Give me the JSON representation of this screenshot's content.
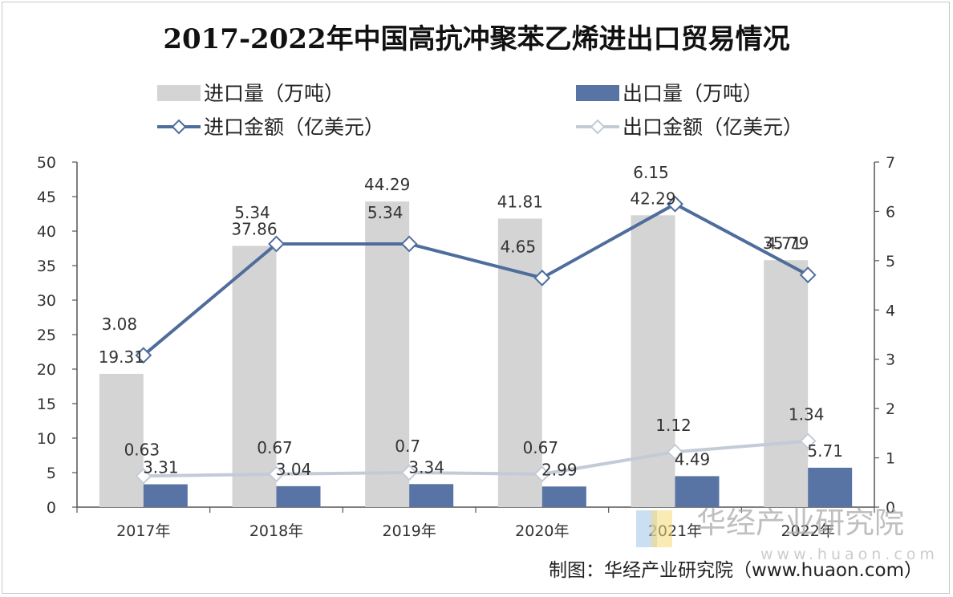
{
  "title": "2017-2022年中国高抗冲聚苯乙烯进出口贸易情况",
  "source": "制图：华经产业研究院（www.huaon.com）",
  "watermark": {
    "name": "华经产业研究院",
    "url": "www.huaon.com"
  },
  "colors": {
    "import_volume": "#d4d4d4",
    "export_volume": "#5874a4",
    "import_value": "#4f6d9c",
    "export_value": "#c3cbd6"
  },
  "chart_data": {
    "type": "bar",
    "categories": [
      "2017年",
      "2018年",
      "2019年",
      "2020年",
      "2021年",
      "2022年"
    ],
    "series": [
      {
        "name": "进口量（万吨）",
        "type": "bar",
        "axis": "left",
        "values": [
          19.31,
          37.86,
          44.29,
          41.81,
          42.29,
          35.79
        ]
      },
      {
        "name": "出口量（万吨）",
        "type": "bar",
        "axis": "left",
        "values": [
          3.31,
          3.04,
          3.34,
          2.99,
          4.49,
          5.71
        ]
      },
      {
        "name": "进口金额（亿美元）",
        "type": "line",
        "axis": "right",
        "values": [
          3.08,
          5.34,
          5.34,
          4.65,
          6.15,
          4.71
        ]
      },
      {
        "name": "出口金额（亿美元）",
        "type": "line",
        "axis": "right",
        "values": [
          0.63,
          0.67,
          0.7,
          0.67,
          1.12,
          1.34
        ]
      }
    ],
    "y_left": {
      "min": 0,
      "max": 50,
      "ticks": [
        "0",
        "5",
        "10",
        "15",
        "20",
        "25",
        "30",
        "35",
        "40",
        "45",
        "50"
      ]
    },
    "y_right": {
      "min": 0,
      "max": 7,
      "ticks": [
        "0",
        "1",
        "2",
        "3",
        "4",
        "5",
        "6",
        "7"
      ]
    },
    "legend_position": "top",
    "grid": false
  }
}
